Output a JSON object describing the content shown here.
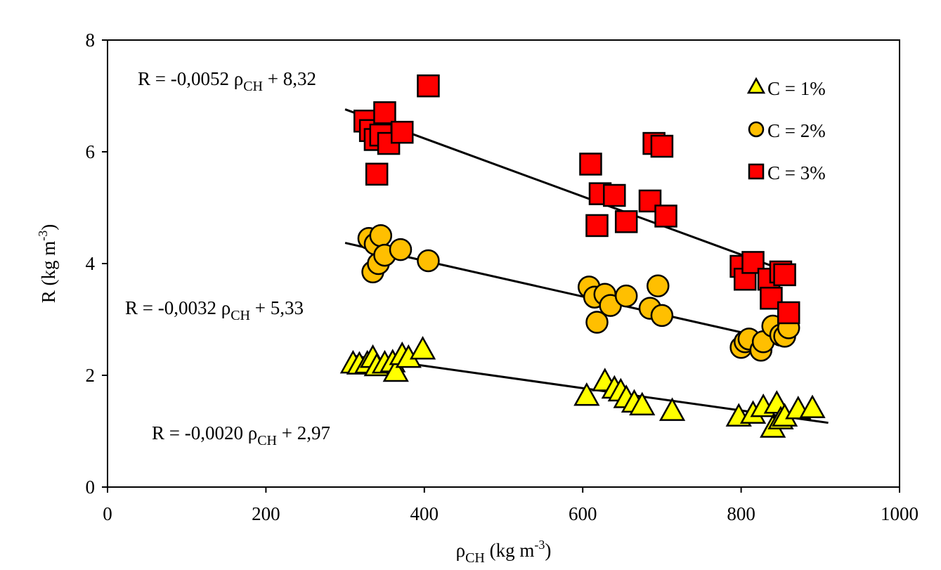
{
  "chart_data": {
    "type": "scatter",
    "xlabel": {
      "base": "ρ",
      "sub": "CH",
      "rest": "  (kg m",
      "sup": "-3",
      "close": ")"
    },
    "ylabel": {
      "base": "R  (kg m",
      "sup": "-3",
      "close": ")"
    },
    "xlim": [
      0,
      1000
    ],
    "ylim": [
      0,
      8
    ],
    "xticks": [
      "0",
      "200",
      "400",
      "600",
      "800",
      "1000"
    ],
    "yticks": [
      "0",
      "2",
      "4",
      "6",
      "8"
    ],
    "legend_position": "top-right",
    "series": [
      {
        "name": "C = 1%",
        "marker": "triangle",
        "color": "#ffff00",
        "trend": {
          "slope": -0.002,
          "intercept": 2.97,
          "x_range": [
            310,
            910
          ]
        },
        "equation": {
          "pre": "R = -0,0020 ",
          "sym": "ρ",
          "sub": "CH",
          "post": " + 2,97"
        },
        "points": [
          [
            310,
            2.2
          ],
          [
            318,
            2.18
          ],
          [
            328,
            2.2
          ],
          [
            335,
            2.3
          ],
          [
            340,
            2.15
          ],
          [
            350,
            2.2
          ],
          [
            360,
            2.22
          ],
          [
            364,
            2.05
          ],
          [
            372,
            2.35
          ],
          [
            380,
            2.3
          ],
          [
            398,
            2.45
          ],
          [
            605,
            1.62
          ],
          [
            628,
            1.88
          ],
          [
            640,
            1.75
          ],
          [
            648,
            1.7
          ],
          [
            655,
            1.58
          ],
          [
            665,
            1.5
          ],
          [
            675,
            1.45
          ],
          [
            713,
            1.35
          ],
          [
            797,
            1.25
          ],
          [
            815,
            1.3
          ],
          [
            828,
            1.42
          ],
          [
            840,
            1.05
          ],
          [
            845,
            1.48
          ],
          [
            850,
            1.2
          ],
          [
            855,
            1.25
          ],
          [
            872,
            1.38
          ],
          [
            890,
            1.4
          ]
        ]
      },
      {
        "name": "C = 2%",
        "marker": "circle",
        "color": "#ffbf00",
        "trend": {
          "slope": -0.0032,
          "intercept": 5.33,
          "x_range": [
            300,
            860
          ]
        },
        "equation": {
          "pre": "R = -0,0032 ",
          "sym": "ρ",
          "sub": "CH",
          "post": " + 5,33"
        },
        "points": [
          [
            330,
            4.45
          ],
          [
            335,
            3.85
          ],
          [
            338,
            4.35
          ],
          [
            342,
            4.0
          ],
          [
            345,
            4.5
          ],
          [
            350,
            4.15
          ],
          [
            370,
            4.25
          ],
          [
            405,
            4.05
          ],
          [
            608,
            3.58
          ],
          [
            615,
            3.4
          ],
          [
            618,
            2.95
          ],
          [
            628,
            3.45
          ],
          [
            635,
            3.25
          ],
          [
            655,
            3.42
          ],
          [
            685,
            3.2
          ],
          [
            695,
            3.6
          ],
          [
            700,
            3.07
          ],
          [
            800,
            2.5
          ],
          [
            805,
            2.6
          ],
          [
            810,
            2.65
          ],
          [
            825,
            2.45
          ],
          [
            828,
            2.6
          ],
          [
            840,
            2.88
          ],
          [
            850,
            2.72
          ],
          [
            855,
            2.7
          ],
          [
            860,
            2.85
          ]
        ]
      },
      {
        "name": "C = 3%",
        "marker": "square",
        "color": "#ff0000",
        "trend": {
          "slope": -0.0052,
          "intercept": 8.32,
          "x_range": [
            300,
            855
          ]
        },
        "equation": {
          "pre": "R = -0,0052 ",
          "sym": "ρ",
          "sub": "CH",
          "post": " + 8,32"
        },
        "points": [
          [
            325,
            6.55
          ],
          [
            332,
            6.38
          ],
          [
            338,
            6.22
          ],
          [
            340,
            5.6
          ],
          [
            345,
            6.3
          ],
          [
            350,
            6.7
          ],
          [
            355,
            6.15
          ],
          [
            372,
            6.35
          ],
          [
            405,
            7.18
          ],
          [
            610,
            5.78
          ],
          [
            618,
            4.68
          ],
          [
            622,
            5.25
          ],
          [
            640,
            5.22
          ],
          [
            655,
            4.75
          ],
          [
            685,
            5.12
          ],
          [
            690,
            6.15
          ],
          [
            700,
            6.1
          ],
          [
            705,
            4.85
          ],
          [
            800,
            3.95
          ],
          [
            805,
            3.72
          ],
          [
            815,
            4.02
          ],
          [
            835,
            3.72
          ],
          [
            838,
            3.38
          ],
          [
            850,
            3.85
          ],
          [
            855,
            3.8
          ],
          [
            860,
            3.12
          ]
        ]
      }
    ]
  }
}
